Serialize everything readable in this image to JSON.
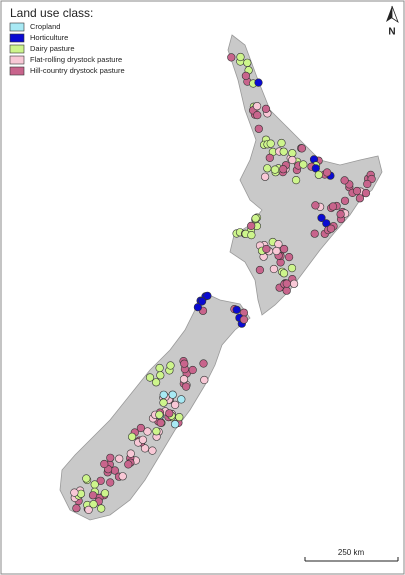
{
  "legend": {
    "title": "Land use class:",
    "items": [
      {
        "label": "Cropland",
        "color": "#a8e9f4"
      },
      {
        "label": "Horticulture",
        "color": "#0a0ad2"
      },
      {
        "label": "Dairy pasture",
        "color": "#cdf58c"
      },
      {
        "label": "Flat-rolling drystock pasture",
        "color": "#f8c8d6"
      },
      {
        "label": "Hill-country drystock pasture",
        "color": "#c8648c"
      }
    ]
  },
  "north_arrow": {
    "label": "N"
  },
  "scale_bar": {
    "label": "250 km"
  }
}
